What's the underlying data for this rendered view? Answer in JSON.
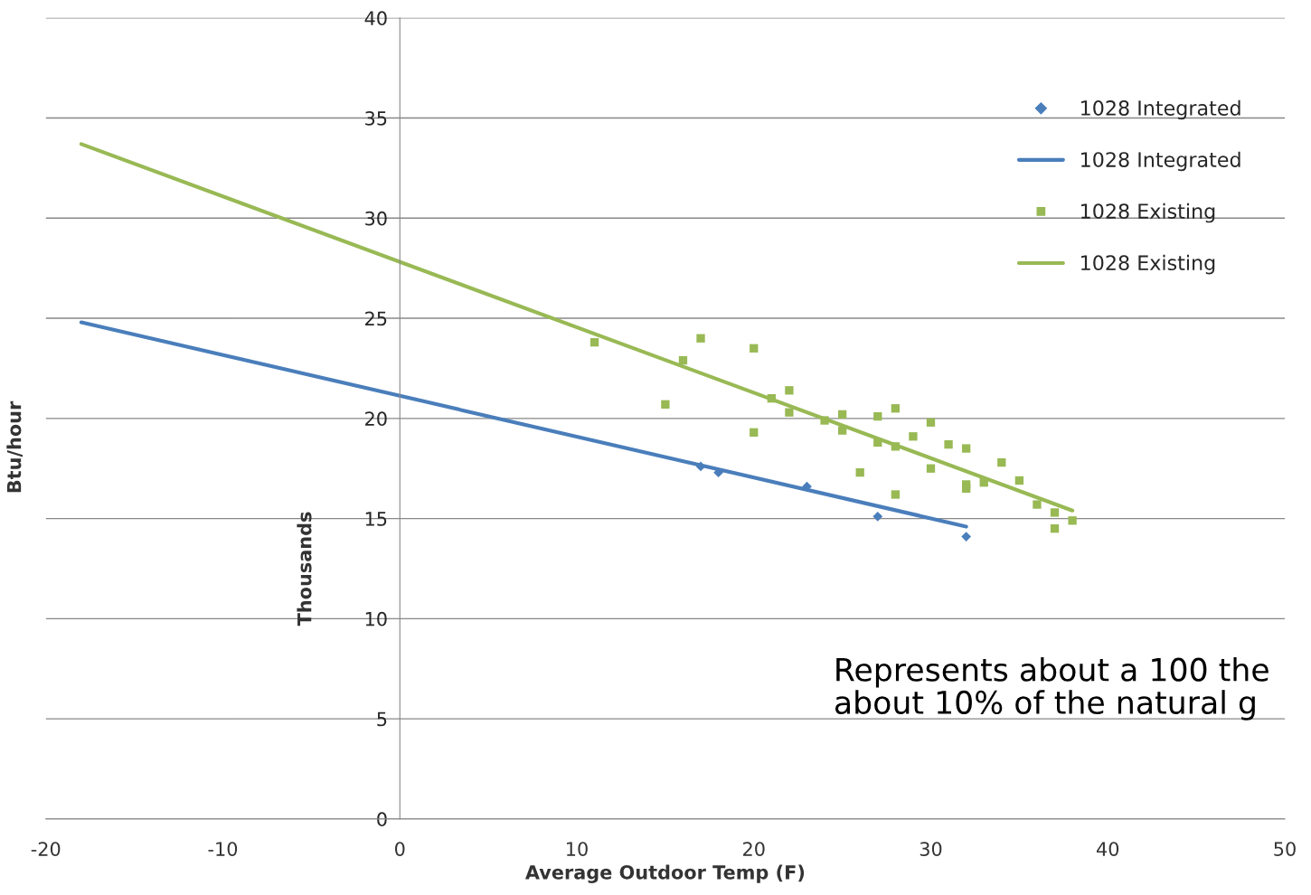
{
  "chart_data": {
    "type": "scatter",
    "xlabel": "Average Outdoor Temp (F)",
    "ylabel": "Btu/hour",
    "xlim": [
      -20,
      50
    ],
    "xticks": [
      -20,
      -10,
      0,
      10,
      20,
      30,
      40,
      50
    ],
    "ylim": [
      0,
      40
    ],
    "yticks": [
      0,
      5,
      10,
      15,
      20,
      25,
      30,
      35,
      40
    ],
    "grid": "y",
    "legend": "top right",
    "annotations": [
      "Thousands",
      "Represents about a 100 the\nabout 10% of the natural g"
    ],
    "series": [
      {
        "name": "1028 Integrated",
        "marker": "diamond",
        "color": "#4a7ebb",
        "x": [
          17,
          18,
          23,
          27,
          32
        ],
        "values": [
          17.6,
          17.3,
          16.6,
          15.1,
          14.1
        ]
      },
      {
        "name": "1028 Integrated",
        "type": "line",
        "marker": "none",
        "line_style": "solid",
        "color": "#4a7ebb",
        "x": [
          -18,
          32
        ],
        "values": [
          24.8,
          14.6
        ]
      },
      {
        "name": "1028 Existing",
        "marker": "square",
        "color": "#98b954",
        "x": [
          11,
          15,
          16,
          17,
          20,
          20,
          21,
          22,
          22,
          24,
          25,
          25,
          26,
          27,
          27,
          28,
          28,
          28,
          29,
          30,
          30,
          31,
          32,
          32,
          32,
          33,
          34,
          35,
          36,
          37,
          37,
          38
        ],
        "values": [
          23.8,
          20.7,
          22.9,
          24.0,
          23.5,
          19.3,
          21.0,
          21.4,
          20.3,
          19.9,
          20.2,
          19.4,
          17.3,
          20.1,
          18.8,
          20.5,
          18.6,
          16.2,
          19.1,
          19.8,
          17.5,
          18.7,
          18.5,
          16.7,
          16.5,
          16.8,
          17.8,
          16.9,
          15.7,
          15.3,
          14.5,
          14.9
        ]
      },
      {
        "name": "1028 Existing",
        "type": "line",
        "marker": "none",
        "line_style": "solid",
        "color": "#98b954",
        "x": [
          -18,
          38
        ],
        "values": [
          33.7,
          15.4
        ]
      }
    ]
  }
}
